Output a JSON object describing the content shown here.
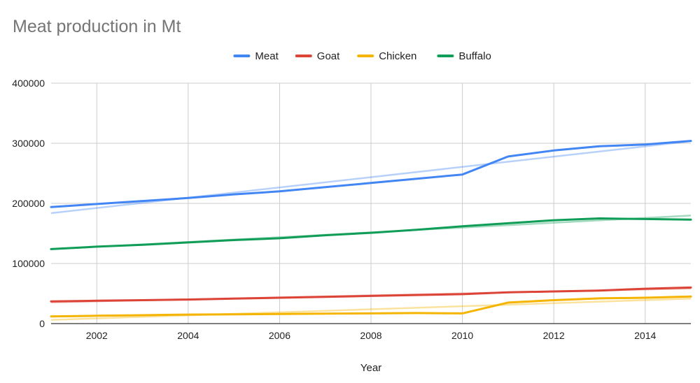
{
  "chart_data": {
    "type": "line",
    "title": "Meat production in Mt",
    "xlabel": "Year",
    "ylabel": "",
    "xlim": [
      2001,
      2015
    ],
    "ylim": [
      0,
      400000
    ],
    "x_ticks": [
      "2002",
      "2004",
      "2006",
      "2008",
      "2010",
      "2012",
      "2014"
    ],
    "y_ticks": [
      "0",
      "100000",
      "200000",
      "300000",
      "400000"
    ],
    "grid": true,
    "legend_position": "top",
    "trendlines": true,
    "x": [
      2001,
      2002,
      2003,
      2004,
      2005,
      2006,
      2007,
      2008,
      2009,
      2010,
      2011,
      2012,
      2013,
      2014,
      2015
    ],
    "series": [
      {
        "name": "Meat",
        "color": "#4285F4",
        "values": [
          194000,
          199000,
          204000,
          209000,
          215000,
          220000,
          227000,
          234000,
          241000,
          248000,
          278000,
          288000,
          295000,
          298000,
          304000
        ]
      },
      {
        "name": "Goat",
        "color": "#DB4437",
        "values": [
          37000,
          38000,
          39000,
          40000,
          41500,
          43000,
          44500,
          46000,
          47500,
          49000,
          52000,
          53500,
          55000,
          58000,
          60000
        ]
      },
      {
        "name": "Chicken",
        "color": "#F4B400",
        "values": [
          12000,
          13000,
          14000,
          15000,
          15500,
          16000,
          16500,
          17000,
          17500,
          17000,
          35000,
          39000,
          42000,
          43000,
          45000
        ]
      },
      {
        "name": "Buffalo",
        "color": "#0F9D58",
        "values": [
          124000,
          128000,
          131000,
          135000,
          139000,
          142000,
          147000,
          151000,
          156000,
          162000,
          167000,
          172000,
          175000,
          174000,
          173000
        ]
      }
    ]
  }
}
